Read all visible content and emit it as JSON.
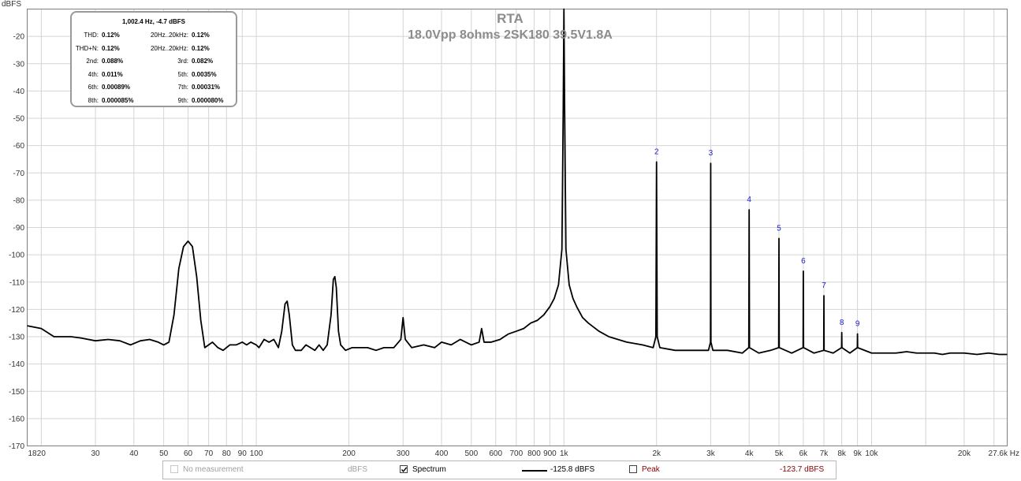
{
  "chart_data": {
    "type": "line",
    "title": "RTA",
    "subtitle": "18.0Vpp 8ohms 2SK180 39.5V1.8A",
    "ylabel": "dBFS",
    "xlabel": "",
    "x_scale": "log",
    "xlim": [
      18,
      27600
    ],
    "ylim": [
      -170,
      -10
    ],
    "grid": true,
    "y_ticks": [
      "-20",
      "-30",
      "-40",
      "-50",
      "-60",
      "-70",
      "-80",
      "-90",
      "-100",
      "-110",
      "-120",
      "-130",
      "-140",
      "-150",
      "-160",
      "-170"
    ],
    "x_ticks": [
      {
        "value": 18,
        "label": "18"
      },
      {
        "value": 20,
        "label": "20"
      },
      {
        "value": 30,
        "label": "30"
      },
      {
        "value": 40,
        "label": "40"
      },
      {
        "value": 50,
        "label": "50"
      },
      {
        "value": 60,
        "label": "60"
      },
      {
        "value": 70,
        "label": "70"
      },
      {
        "value": 80,
        "label": "80"
      },
      {
        "value": 90,
        "label": "90"
      },
      {
        "value": 100,
        "label": "100"
      },
      {
        "value": 200,
        "label": "200"
      },
      {
        "value": 300,
        "label": "300"
      },
      {
        "value": 400,
        "label": "400"
      },
      {
        "value": 500,
        "label": "500"
      },
      {
        "value": 600,
        "label": "600"
      },
      {
        "value": 700,
        "label": "700"
      },
      {
        "value": 800,
        "label": "800"
      },
      {
        "value": 900,
        "label": "900"
      },
      {
        "value": 1000,
        "label": "1k"
      },
      {
        "value": 2000,
        "label": "2k"
      },
      {
        "value": 3000,
        "label": "3k"
      },
      {
        "value": 4000,
        "label": "4k"
      },
      {
        "value": 5000,
        "label": "5k"
      },
      {
        "value": 6000,
        "label": "6k"
      },
      {
        "value": 7000,
        "label": "7k"
      },
      {
        "value": 8000,
        "label": "8k"
      },
      {
        "value": 9000,
        "label": "9k"
      },
      {
        "value": 10000,
        "label": "10k"
      },
      {
        "value": 20000,
        "label": "20k"
      },
      {
        "value": 27600,
        "label": "27.6k Hz"
      }
    ],
    "minor_grid_x": [
      15000,
      25000
    ],
    "series": [
      {
        "name": "Spectrum",
        "color": "#000000",
        "points": [
          [
            18,
            -126
          ],
          [
            20,
            -127
          ],
          [
            22,
            -130
          ],
          [
            25,
            -130
          ],
          [
            27,
            -130.5
          ],
          [
            30,
            -131.5
          ],
          [
            33,
            -131
          ],
          [
            36,
            -131.5
          ],
          [
            39,
            -133
          ],
          [
            42,
            -131.5
          ],
          [
            45,
            -131
          ],
          [
            48,
            -132
          ],
          [
            50,
            -133
          ],
          [
            52,
            -132
          ],
          [
            54,
            -122
          ],
          [
            56,
            -105
          ],
          [
            58,
            -97
          ],
          [
            60,
            -95
          ],
          [
            62,
            -97
          ],
          [
            64,
            -108
          ],
          [
            66,
            -124
          ],
          [
            68,
            -134
          ],
          [
            70,
            -133
          ],
          [
            72,
            -132
          ],
          [
            75,
            -134
          ],
          [
            78,
            -135
          ],
          [
            82,
            -133
          ],
          [
            86,
            -133
          ],
          [
            90,
            -132
          ],
          [
            93,
            -133
          ],
          [
            96,
            -132
          ],
          [
            100,
            -133
          ],
          [
            102,
            -134
          ],
          [
            106,
            -131
          ],
          [
            110,
            -132
          ],
          [
            114,
            -131
          ],
          [
            118,
            -134
          ],
          [
            121,
            -128
          ],
          [
            124,
            -118
          ],
          [
            126,
            -117
          ],
          [
            128,
            -122
          ],
          [
            131,
            -133
          ],
          [
            134,
            -135
          ],
          [
            140,
            -135
          ],
          [
            145,
            -133
          ],
          [
            150,
            -134
          ],
          [
            155,
            -135
          ],
          [
            160,
            -133
          ],
          [
            165,
            -135
          ],
          [
            170,
            -133
          ],
          [
            175,
            -122
          ],
          [
            178,
            -109
          ],
          [
            180,
            -108
          ],
          [
            182,
            -112
          ],
          [
            185,
            -128
          ],
          [
            188,
            -133
          ],
          [
            195,
            -135
          ],
          [
            205,
            -134
          ],
          [
            215,
            -134
          ],
          [
            230,
            -134
          ],
          [
            245,
            -135
          ],
          [
            260,
            -134
          ],
          [
            280,
            -134
          ],
          [
            295,
            -131
          ],
          [
            300,
            -123
          ],
          [
            305,
            -131
          ],
          [
            320,
            -134
          ],
          [
            350,
            -133
          ],
          [
            380,
            -134
          ],
          [
            400,
            -132
          ],
          [
            430,
            -133
          ],
          [
            460,
            -131
          ],
          [
            500,
            -133
          ],
          [
            530,
            -132
          ],
          [
            540,
            -127
          ],
          [
            550,
            -132
          ],
          [
            580,
            -132
          ],
          [
            620,
            -131
          ],
          [
            660,
            -129
          ],
          [
            700,
            -128
          ],
          [
            740,
            -127
          ],
          [
            780,
            -125
          ],
          [
            820,
            -124
          ],
          [
            860,
            -122
          ],
          [
            900,
            -119
          ],
          [
            930,
            -116
          ],
          [
            960,
            -111
          ],
          [
            985,
            -98
          ],
          [
            995,
            -45
          ],
          [
            1000,
            -10
          ],
          [
            1005,
            -45
          ],
          [
            1015,
            -98
          ],
          [
            1040,
            -111
          ],
          [
            1070,
            -116
          ],
          [
            1100,
            -119
          ],
          [
            1150,
            -123
          ],
          [
            1200,
            -125
          ],
          [
            1300,
            -128
          ],
          [
            1400,
            -130
          ],
          [
            1600,
            -132
          ],
          [
            1800,
            -133
          ],
          [
            1950,
            -134
          ],
          [
            1990,
            -130
          ],
          [
            2000,
            -66
          ],
          [
            2010,
            -130
          ],
          [
            2050,
            -134
          ],
          [
            2300,
            -135
          ],
          [
            2600,
            -135
          ],
          [
            2950,
            -135
          ],
          [
            2995,
            -132
          ],
          [
            3000,
            -66.5
          ],
          [
            3005,
            -132
          ],
          [
            3050,
            -135
          ],
          [
            3400,
            -135
          ],
          [
            3800,
            -136
          ],
          [
            3990,
            -134
          ],
          [
            4000,
            -83.5
          ],
          [
            4010,
            -134
          ],
          [
            4300,
            -136
          ],
          [
            4700,
            -135
          ],
          [
            4990,
            -134
          ],
          [
            5000,
            -94
          ],
          [
            5010,
            -134
          ],
          [
            5500,
            -136
          ],
          [
            5990,
            -134
          ],
          [
            6000,
            -106
          ],
          [
            6010,
            -134
          ],
          [
            6500,
            -136
          ],
          [
            6990,
            -135
          ],
          [
            7000,
            -115
          ],
          [
            7010,
            -135
          ],
          [
            7500,
            -136
          ],
          [
            7990,
            -134
          ],
          [
            8000,
            -128.5
          ],
          [
            8010,
            -134
          ],
          [
            8500,
            -136
          ],
          [
            8990,
            -134
          ],
          [
            9000,
            -129
          ],
          [
            9010,
            -134
          ],
          [
            10000,
            -136
          ],
          [
            11000,
            -136
          ],
          [
            12000,
            -136
          ],
          [
            13000,
            -135.5
          ],
          [
            14000,
            -136
          ],
          [
            15000,
            -136
          ],
          [
            16000,
            -136
          ],
          [
            17000,
            -136.5
          ],
          [
            18000,
            -136
          ],
          [
            20000,
            -136
          ],
          [
            22000,
            -136.5
          ],
          [
            24000,
            -136
          ],
          [
            26000,
            -136.5
          ],
          [
            27600,
            -136.5
          ]
        ]
      }
    ],
    "harmonic_labels": [
      {
        "label": "2",
        "freq": 2000,
        "db": -66
      },
      {
        "label": "3",
        "freq": 3000,
        "db": -66.5
      },
      {
        "label": "4",
        "freq": 4000,
        "db": -83.5
      },
      {
        "label": "5",
        "freq": 5000,
        "db": -94
      },
      {
        "label": "6",
        "freq": 6000,
        "db": -106
      },
      {
        "label": "7",
        "freq": 7000,
        "db": -115
      },
      {
        "label": "8",
        "freq": 8000,
        "db": -128.5
      },
      {
        "label": "9",
        "freq": 9000,
        "db": -129
      }
    ]
  },
  "info_box": {
    "header": "1,002.4 Hz, -4.7 dBFS",
    "rows": [
      {
        "l1": "THD:",
        "v1": "0.12%",
        "l2": "20Hz..20kHz:",
        "v2": "0.12%"
      },
      {
        "l1": "THD+N:",
        "v1": "0.12%",
        "l2": "20Hz..20kHz:",
        "v2": "0.12%"
      },
      {
        "l1": "2nd:",
        "v1": "0.088%",
        "l2": "3rd:",
        "v2": "0.082%"
      },
      {
        "l1": "4th:",
        "v1": "0.011%",
        "l2": "5th:",
        "v2": "0.0035%"
      },
      {
        "l1": "6th:",
        "v1": "0.00089%",
        "l2": "7th:",
        "v2": "0.00031%"
      },
      {
        "l1": "8th:",
        "v1": "0.000085%",
        "l2": "9th:",
        "v2": "0.000080%"
      }
    ]
  },
  "legend": {
    "no_measurement_label": "No measurement",
    "no_measurement_unit": "dBFS",
    "spectrum_label": "Spectrum",
    "spectrum_checked": true,
    "spectrum_value": "-125.8 dBFS",
    "peak_label": "Peak",
    "peak_checked": false,
    "peak_value": "-123.7 dBFS",
    "peak_color": "#8b0000",
    "disabled_color": "#a0a0a0"
  },
  "colors": {
    "grid": "#d4d4d4",
    "axis": "#808080",
    "title": "#8c8c8c",
    "harmonic_label": "#1c1cc8"
  }
}
